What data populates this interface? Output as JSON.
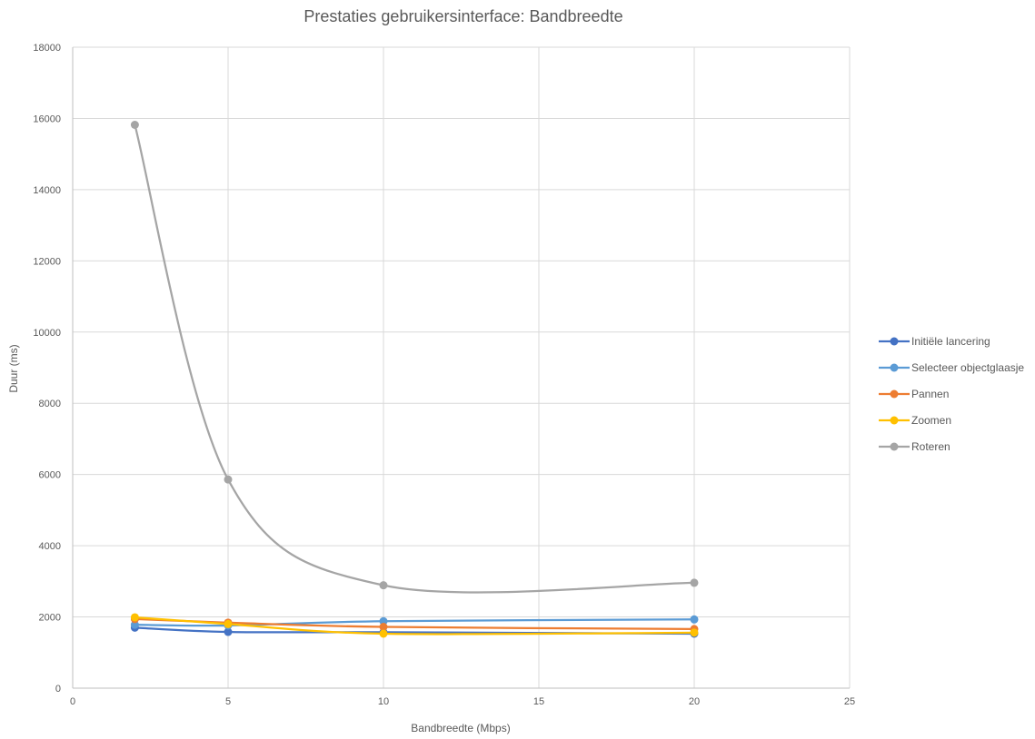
{
  "chart_data": {
    "type": "scatter",
    "title": "Prestaties gebruikersinterface: Bandbreedte",
    "xlabel": "Bandbreedte (Mbps)",
    "ylabel": "Duur (ms)",
    "xlim": [
      0,
      25
    ],
    "ylim": [
      0,
      18000
    ],
    "x_ticks": [
      0,
      5,
      10,
      15,
      20,
      25
    ],
    "y_ticks": [
      0,
      2000,
      4000,
      6000,
      8000,
      10000,
      12000,
      14000,
      16000,
      18000
    ],
    "grid": true,
    "smooth_lines": true,
    "legend_position": "right",
    "x": [
      2,
      5,
      10,
      20
    ],
    "series": [
      {
        "name": "Initiële lancering",
        "color": "#4472C4",
        "values": [
          1700,
          1580,
          1570,
          1530
        ]
      },
      {
        "name": "Selecteer objectglaasje",
        "color": "#5B9BD5",
        "values": [
          1780,
          1760,
          1880,
          1930
        ]
      },
      {
        "name": "Pannen",
        "color": "#ED7D31",
        "values": [
          1940,
          1840,
          1720,
          1660
        ]
      },
      {
        "name": "Zoomen",
        "color": "#FFC000",
        "values": [
          1990,
          1800,
          1530,
          1560
        ]
      },
      {
        "name": "Roteren",
        "color": "#A5A5A5",
        "values": [
          15820,
          5860,
          2890,
          2960
        ]
      }
    ]
  }
}
